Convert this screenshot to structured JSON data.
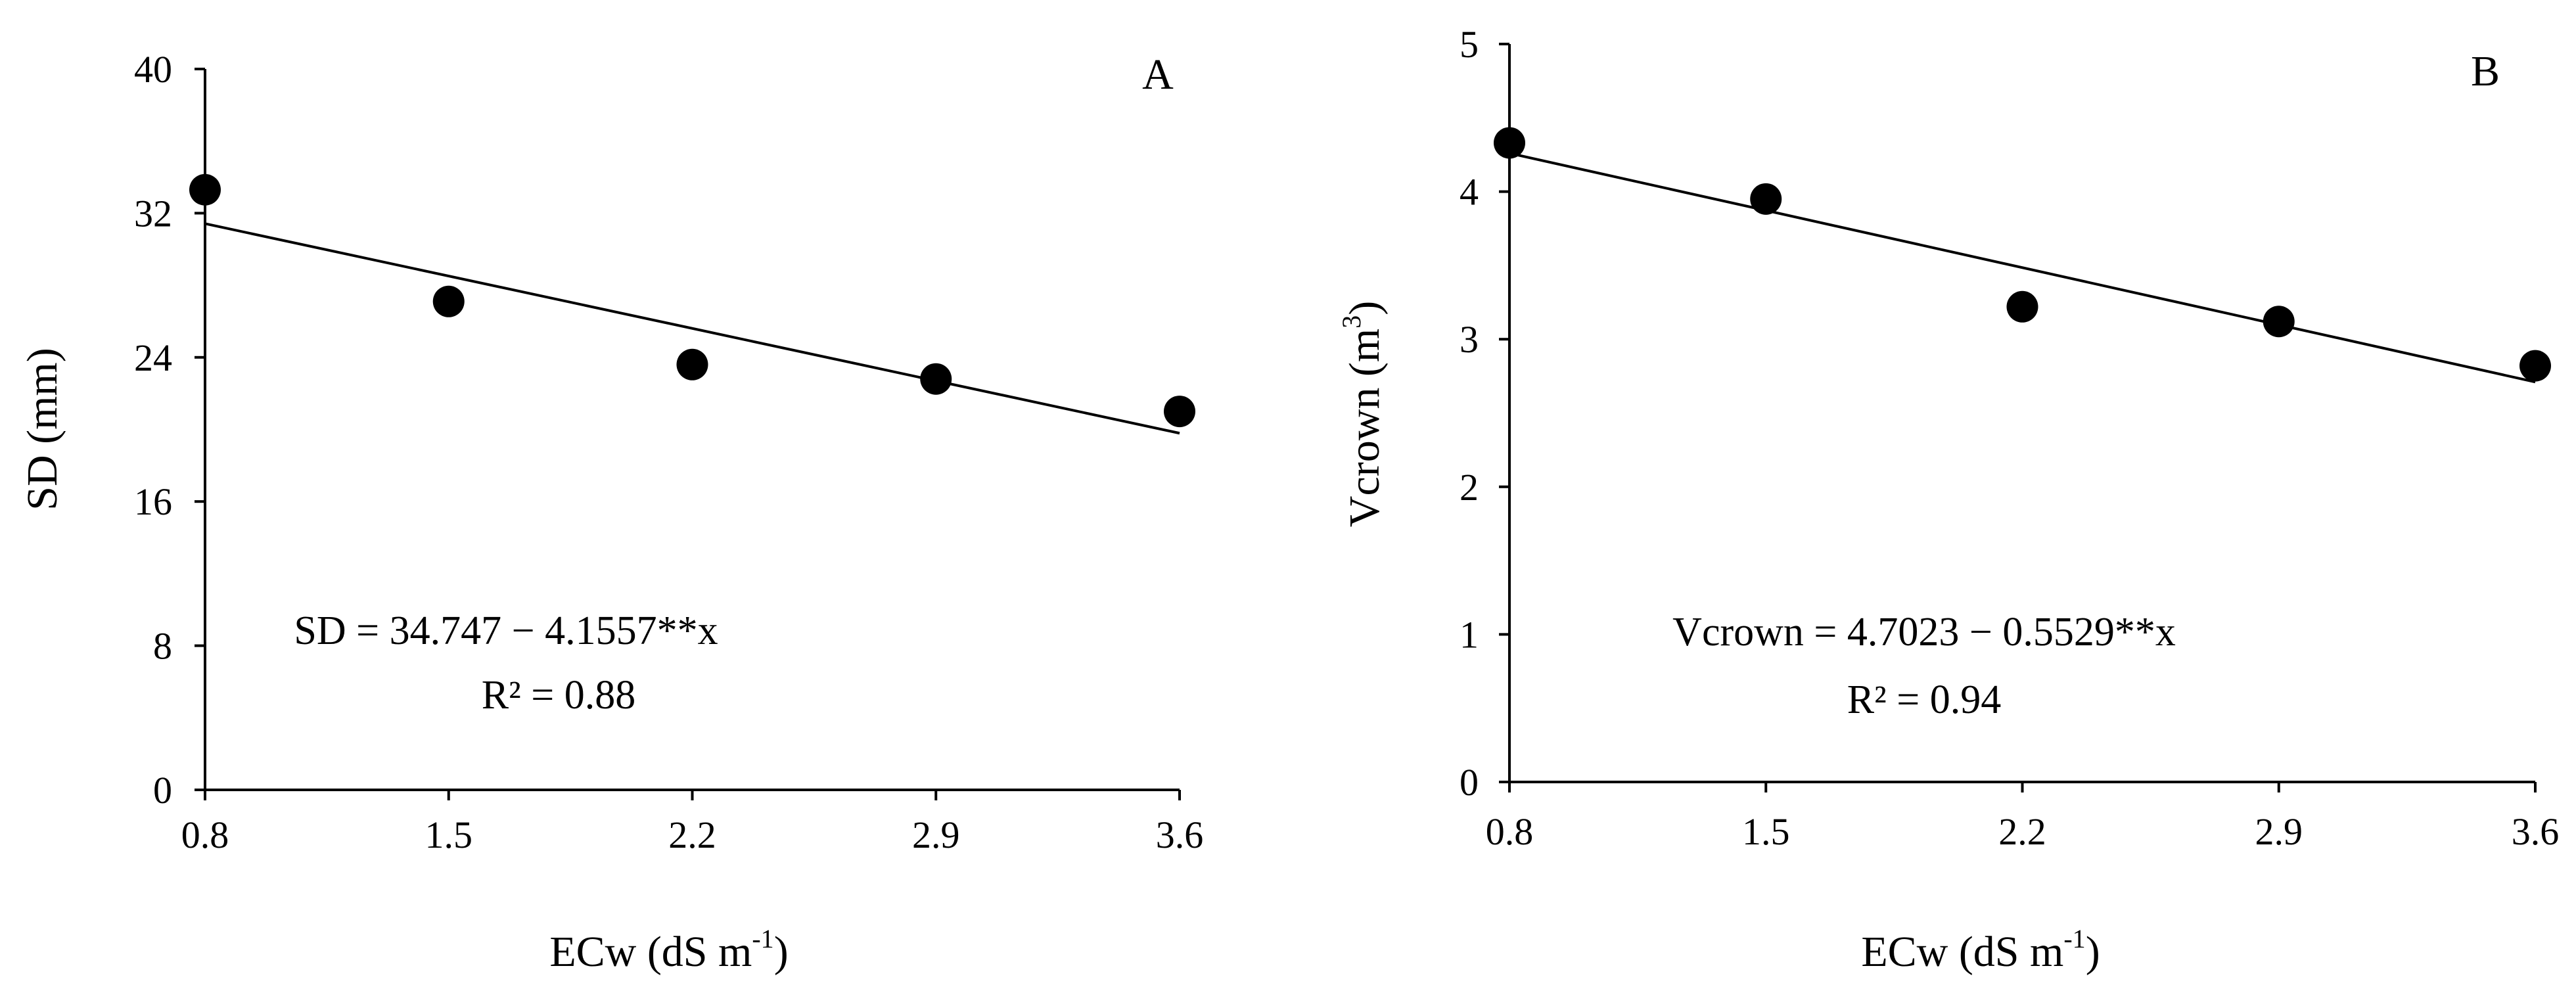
{
  "chart_data": [
    {
      "type": "scatter",
      "panel_label": "A",
      "xlabel": "ECw (dS m",
      "xlabel_sup": "-1",
      "xlabel_close": ")",
      "ylabel": "SD (mm)",
      "x_ticks": [
        "0.8",
        "1.5",
        "2.2",
        "2.9",
        "3.6"
      ],
      "y_ticks": [
        "0",
        "8",
        "16",
        "24",
        "32",
        "40"
      ],
      "xlim": [
        0.8,
        3.6
      ],
      "ylim": [
        0,
        40
      ],
      "x": [
        0.8,
        1.5,
        2.2,
        2.9,
        3.6
      ],
      "y": [
        33.3,
        27.1,
        23.6,
        22.8,
        21.0
      ],
      "fit_line": {
        "x": [
          0.8,
          3.6
        ],
        "y": [
          31.42,
          19.79
        ]
      },
      "equation": "SD = 34.747 − 4.1557**x",
      "r2": "R² = 0.88",
      "grid": false,
      "color": "#000000"
    },
    {
      "type": "scatter",
      "panel_label": "B",
      "xlabel": "ECw (dS m",
      "xlabel_sup": "-1",
      "xlabel_close": ")",
      "ylabel": "Vcrown (m",
      "ylabel_sup": "3",
      "ylabel_close": ")",
      "x_ticks": [
        "0.8",
        "1.5",
        "2.2",
        "2.9",
        "3.6"
      ],
      "y_ticks": [
        "0",
        "1",
        "2",
        "3",
        "4",
        "5"
      ],
      "xlim": [
        0.8,
        3.6
      ],
      "ylim": [
        0,
        5
      ],
      "x": [
        0.8,
        1.5,
        2.2,
        2.9,
        3.6
      ],
      "y": [
        4.33,
        3.95,
        3.22,
        3.12,
        2.82
      ],
      "fit_line": {
        "x": [
          0.8,
          3.6
        ],
        "y": [
          4.26,
          2.71
        ]
      },
      "equation": "Vcrown = 4.7023 − 0.5529**x",
      "r2": "R² = 0.94",
      "grid": false,
      "color": "#000000"
    }
  ]
}
